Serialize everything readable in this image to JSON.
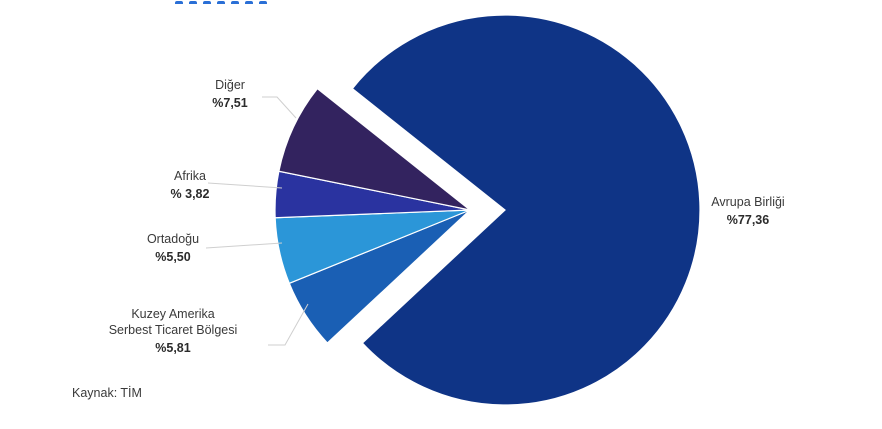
{
  "chart_data": {
    "type": "pie",
    "slices": [
      {
        "label_lines": [
          "Avrupa Birliği"
        ],
        "value": 77.36,
        "value_text": "%77,36",
        "color": "#0f3486",
        "exploded": true
      },
      {
        "label_lines": [
          "Kuzey Amerika",
          "Serbest Ticaret Bölgesi"
        ],
        "value": 5.81,
        "value_text": "%5,81",
        "color": "#1a5fb4",
        "exploded": false
      },
      {
        "label_lines": [
          "Ortadoğu"
        ],
        "value": 5.5,
        "value_text": "%5,50",
        "color": "#2b96d8",
        "exploded": false
      },
      {
        "label_lines": [
          "Afrika"
        ],
        "value": 3.82,
        "value_text": "% 3,82",
        "color": "#2a33a0",
        "exploded": false
      },
      {
        "label_lines": [
          "Diğer"
        ],
        "value": 7.51,
        "value_text": "%7,51",
        "color": "#33235f",
        "exploded": false
      }
    ]
  },
  "source_text": "Kaynak: TİM"
}
